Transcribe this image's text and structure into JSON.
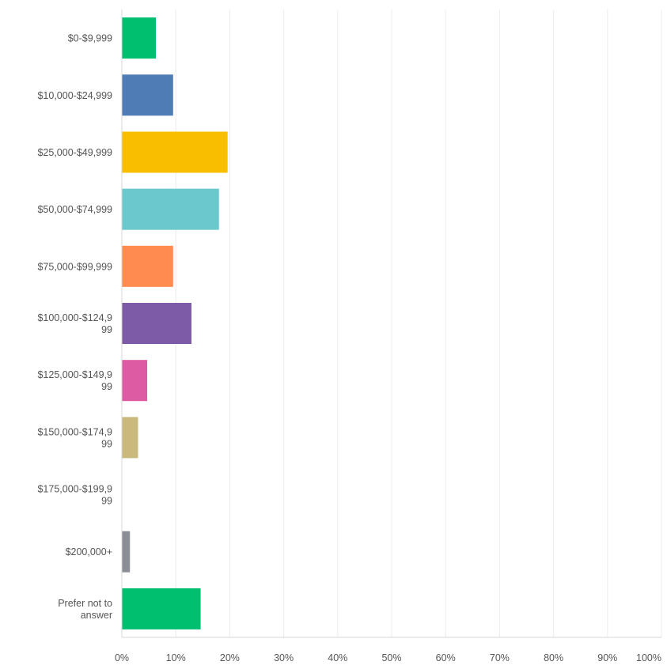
{
  "chart_data": {
    "type": "bar",
    "orientation": "horizontal",
    "title": "",
    "xlabel": "",
    "ylabel": "",
    "xlim": [
      0,
      100
    ],
    "grid": true,
    "categories": [
      "$0-$9,999",
      "$10,000-$24,999",
      "$25,000-$49,999",
      "$50,000-$74,999",
      "$75,000-$99,999",
      "$100,000-$124,999",
      "$125,000-$149,999",
      "$150,000-$174,999",
      "$175,000-$199,999",
      "$200,000+",
      "Prefer not to answer"
    ],
    "category_lines": [
      [
        "$0-$9,999"
      ],
      [
        "$10,000-$24,999"
      ],
      [
        "$25,000-$49,999"
      ],
      [
        "$50,000-$74,999"
      ],
      [
        "$75,000-$99,999"
      ],
      [
        "$100,000-$124,9",
        "99"
      ],
      [
        "$125,000-$149,9",
        "99"
      ],
      [
        "$150,000-$174,9",
        "99"
      ],
      [
        "$175,000-$199,9",
        "99"
      ],
      [
        "$200,000+"
      ],
      [
        "Prefer not to",
        "answer"
      ]
    ],
    "values": [
      6.3,
      9.5,
      19.6,
      18.0,
      9.5,
      12.9,
      4.7,
      3.0,
      0,
      1.5,
      14.6
    ],
    "colors": [
      "#00bf6f",
      "#507cb6",
      "#f9be00",
      "#6bc8cd",
      "#ff8b4f",
      "#7d5ba6",
      "#dd5ba3",
      "#c9b97d",
      "#a0a0a0",
      "#8b8e95",
      "#00bf6f"
    ],
    "x_ticks": [
      0,
      10,
      20,
      30,
      40,
      50,
      60,
      70,
      80,
      90,
      100
    ],
    "x_tick_labels": [
      "0%",
      "10%",
      "20%",
      "30%",
      "40%",
      "50%",
      "60%",
      "70%",
      "80%",
      "90%",
      "100%"
    ]
  }
}
